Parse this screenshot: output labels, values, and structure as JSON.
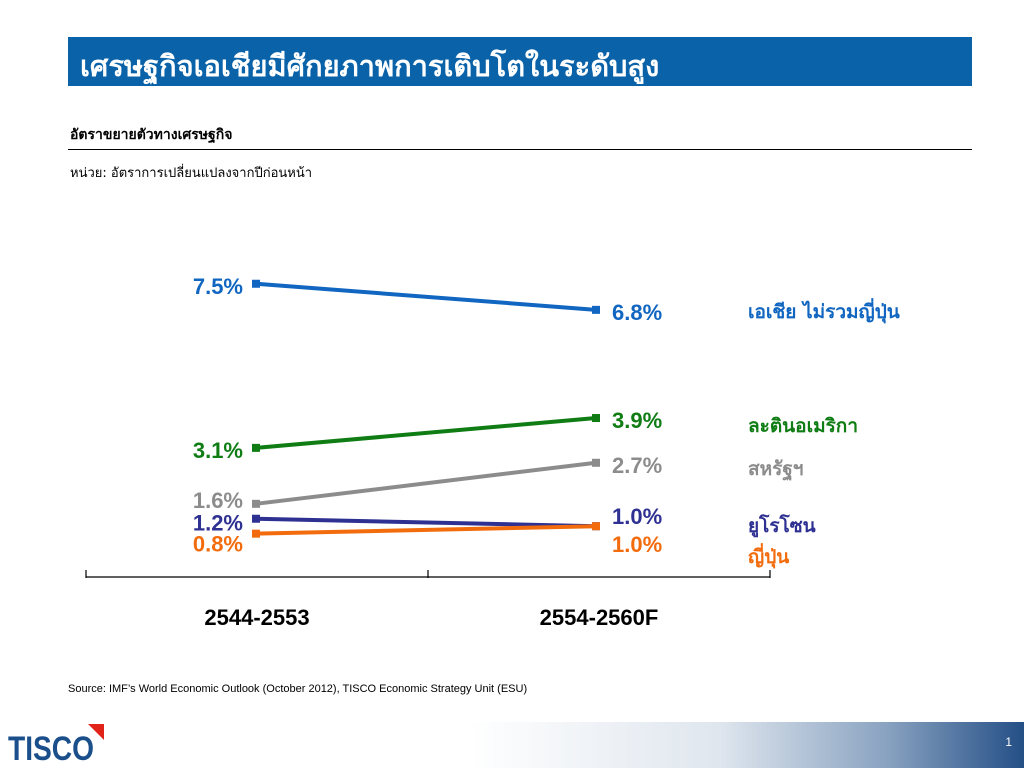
{
  "slide": {
    "title": "เศรษฐกิจเอเชียมีศักยภาพการเติบโตในระดับสูง",
    "subtitle": "อัตราขยายตัวทางเศรษฐกิจ",
    "unit": "หน่วย: อัตราการเปลี่ยนแปลงจากปีก่อนหน้า",
    "source": "Source: IMF’s World Economic Outlook (October 2012), TISCO Economic Strategy Unit (ESU)",
    "page_number": "1",
    "logo_text": "TISCO"
  },
  "chart_data": {
    "type": "line",
    "categories": [
      "2544-2553",
      "2554-2560F"
    ],
    "series": [
      {
        "name": "เอเชีย ไม่รวมญี่ปุ่น",
        "values": [
          7.5,
          6.8
        ],
        "labels": [
          "7.5%",
          "6.8%"
        ],
        "color": "#1066c0"
      },
      {
        "name": "ละตินอเมริกา",
        "values": [
          3.1,
          3.9
        ],
        "labels": [
          "3.1%",
          "3.9%"
        ],
        "color": "#0f7d14"
      },
      {
        "name": "สหรัฐฯ",
        "values": [
          1.6,
          2.7
        ],
        "labels": [
          "1.6%",
          "2.7%"
        ],
        "color": "#8c8c8c"
      },
      {
        "name": "ยูโรโซน",
        "values": [
          1.2,
          1.0
        ],
        "labels": [
          "1.2%",
          "1.0%"
        ],
        "color": "#2e3192"
      },
      {
        "name": "ญี่ปุ่น",
        "values": [
          0.8,
          1.0
        ],
        "labels": [
          "0.8%",
          "1.0%"
        ],
        "color": "#f26c0d"
      }
    ],
    "legend": "right",
    "grid": false
  }
}
